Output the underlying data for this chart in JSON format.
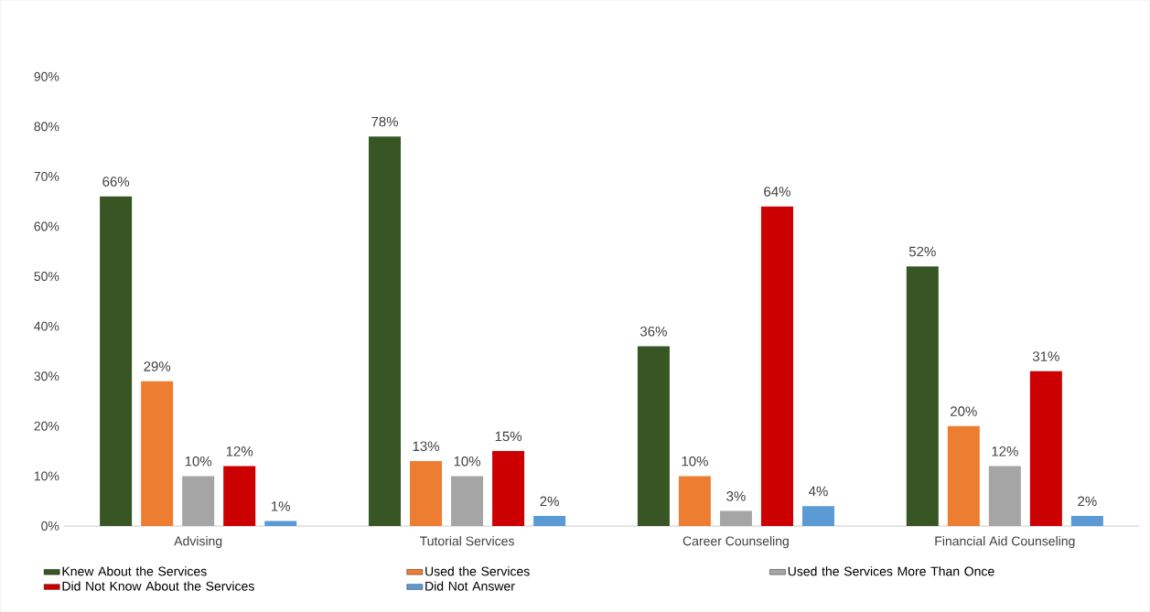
{
  "chart_data": {
    "type": "bar",
    "categories": [
      "Advising",
      "Tutorial Services",
      "Career Counseling",
      "Financial Aid Counseling"
    ],
    "series": [
      {
        "name": "Knew About the Services",
        "color": "#375623",
        "values": [
          66,
          78,
          36,
          52
        ],
        "value_labels": [
          "66%",
          "78%",
          "36%",
          "52%"
        ]
      },
      {
        "name": "Used the Services",
        "color": "#ed7d31",
        "values": [
          29,
          13,
          10,
          20
        ],
        "value_labels": [
          "29%",
          "13%",
          "10%",
          "20%"
        ]
      },
      {
        "name": "Used the Services More Than Once",
        "color": "#a5a5a5",
        "values": [
          10,
          10,
          3,
          12
        ],
        "value_labels": [
          "10%",
          "10%",
          "3%",
          "12%"
        ]
      },
      {
        "name": "Did Not Know About the Services",
        "color": "#cc0000",
        "values": [
          12,
          15,
          64,
          31
        ],
        "value_labels": [
          "12%",
          "15%",
          "64%",
          "31%"
        ]
      },
      {
        "name": "Did Not Answer",
        "color": "#5b9bd5",
        "values": [
          1,
          2,
          4,
          2
        ],
        "value_labels": [
          "1%",
          "2%",
          "4%",
          "2%"
        ]
      }
    ],
    "ylim": [
      0,
      90
    ],
    "yticks": [
      {
        "value": 0,
        "label": "0%"
      },
      {
        "value": 10,
        "label": "10%"
      },
      {
        "value": 20,
        "label": "20%"
      },
      {
        "value": 30,
        "label": "30%"
      },
      {
        "value": 40,
        "label": "40%"
      },
      {
        "value": 50,
        "label": "50%"
      },
      {
        "value": 60,
        "label": "60%"
      },
      {
        "value": 70,
        "label": "70%"
      },
      {
        "value": 80,
        "label": "80%"
      },
      {
        "value": 90,
        "label": "90%"
      }
    ],
    "grid": false,
    "legend": "bottom"
  }
}
